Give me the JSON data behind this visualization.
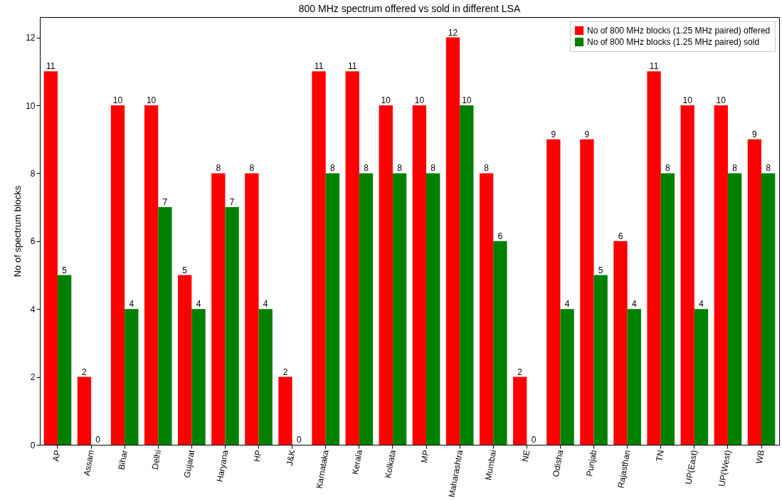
{
  "chart_data": {
    "type": "bar",
    "title": "800 MHz spectrum offered vs sold in different LSA",
    "ylabel": "No of spectrum blocks",
    "categories": [
      "AP",
      "Assam",
      "Bihar",
      "Delhi",
      "Gujarat",
      "Haryana",
      "HP",
      "J&K",
      "Karnataka",
      "Kerala",
      "Kolkata",
      "MP",
      "Maharashtra",
      "Mumbai",
      "NE",
      "Odisha",
      "Punjab",
      "Rajasthan",
      "TN",
      "UP(East)",
      "UP(West)",
      "WB"
    ],
    "series": [
      {
        "name": "No of 800 MHz blocks (1.25 MHz paired) offered",
        "color": "#ff0000",
        "values": [
          11,
          2,
          10,
          10,
          5,
          8,
          8,
          2,
          11,
          11,
          10,
          10,
          12,
          8,
          2,
          9,
          9,
          6,
          11,
          10,
          10,
          9
        ]
      },
      {
        "name": "No of 800 MHz blocks (1.25 MHz paired) sold",
        "color": "#008000",
        "values": [
          5,
          0,
          4,
          7,
          4,
          7,
          4,
          0,
          8,
          8,
          8,
          8,
          10,
          6,
          0,
          4,
          5,
          4,
          8,
          4,
          8,
          8
        ]
      }
    ],
    "ylim": [
      0,
      12.6
    ],
    "yticks": [
      0,
      2,
      4,
      6,
      8,
      10,
      12
    ],
    "grid": false,
    "legend": "top right",
    "data_labels": true
  }
}
